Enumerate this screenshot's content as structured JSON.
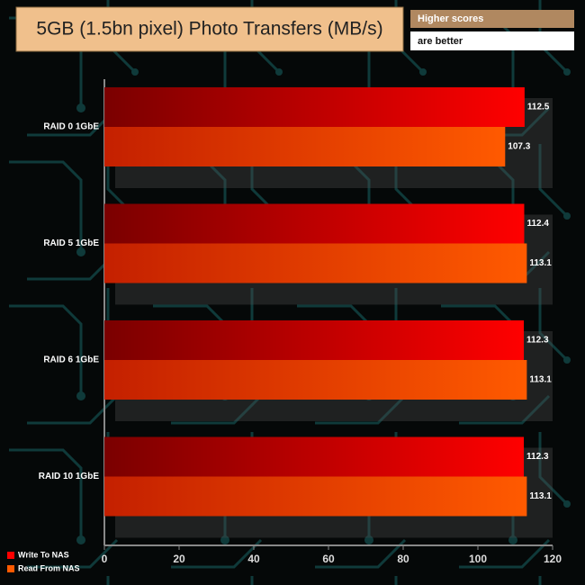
{
  "chart_data": {
    "type": "hbar",
    "title": "5GB (1.5bn pixel) Photo Transfers (MB/s)",
    "note_lines": [
      "Higher scores",
      "are better"
    ],
    "categories": [
      "RAID 0 1GbE",
      "RAID 5 1GbE",
      "RAID 6 1GbE",
      "RAID 10 1GbE"
    ],
    "series": [
      {
        "name": "Write To NAS",
        "color": "#ff0000",
        "values": [
          112.5,
          112.4,
          112.3,
          112.3
        ]
      },
      {
        "name": "Read From NAS",
        "color": "#ff5a00",
        "values": [
          107.3,
          113.1,
          113.1,
          113.1
        ]
      }
    ],
    "xlim": [
      0,
      120
    ],
    "xticks": [
      0,
      20,
      40,
      60,
      80,
      100,
      120
    ],
    "legend": "bottom-left"
  }
}
